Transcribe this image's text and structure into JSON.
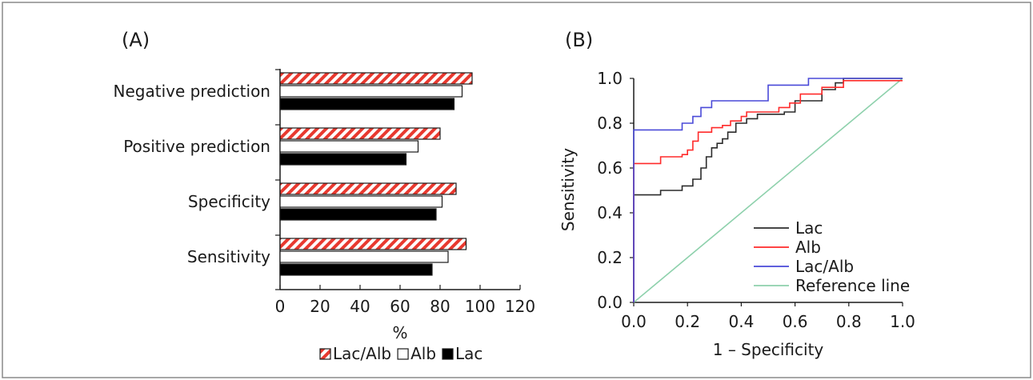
{
  "chart_data": [
    {
      "panel_label": "(A)",
      "type": "bar",
      "orientation": "horizontal",
      "categories": [
        "Negative prediction",
        "Positive prediction",
        "Specificity",
        "Sensitivity"
      ],
      "series": [
        {
          "name": "Lac/Alb",
          "values": [
            96,
            80,
            88,
            93
          ],
          "fill": "hatched-red",
          "color": "#e8392f"
        },
        {
          "name": "Alb",
          "values": [
            91,
            69,
            81,
            84
          ],
          "fill": "white",
          "color": "#ffffff"
        },
        {
          "name": "Lac",
          "values": [
            87,
            63,
            78,
            76
          ],
          "fill": "black",
          "color": "#000000"
        }
      ],
      "xlabel": "%",
      "ylabel": "",
      "xlim": [
        0,
        120
      ],
      "xticks": [
        "0",
        "20",
        "40",
        "60",
        "80",
        "100",
        "120"
      ],
      "legend_position": "bottom",
      "grid": false
    },
    {
      "panel_label": "(B)",
      "type": "line",
      "xlabel": "1 – Specificity",
      "ylabel": "Sensitivity",
      "xlim": [
        0,
        1
      ],
      "ylim": [
        0,
        1
      ],
      "xticks": [
        "0.0",
        "0.2",
        "0.4",
        "0.6",
        "0.8",
        "1.0"
      ],
      "yticks": [
        "0.0",
        "0.2",
        "0.4",
        "0.6",
        "0.8",
        "1.0"
      ],
      "legend_position": "bottom-right",
      "grid": false,
      "series": [
        {
          "name": "Lac",
          "color": "#2b2b2b",
          "points": [
            [
              0,
              0
            ],
            [
              0,
              0.48
            ],
            [
              0.1,
              0.48
            ],
            [
              0.1,
              0.5
            ],
            [
              0.18,
              0.5
            ],
            [
              0.18,
              0.52
            ],
            [
              0.22,
              0.52
            ],
            [
              0.22,
              0.55
            ],
            [
              0.25,
              0.55
            ],
            [
              0.25,
              0.6
            ],
            [
              0.27,
              0.6
            ],
            [
              0.27,
              0.65
            ],
            [
              0.29,
              0.65
            ],
            [
              0.29,
              0.69
            ],
            [
              0.31,
              0.69
            ],
            [
              0.31,
              0.71
            ],
            [
              0.33,
              0.71
            ],
            [
              0.33,
              0.73
            ],
            [
              0.35,
              0.73
            ],
            [
              0.35,
              0.76
            ],
            [
              0.38,
              0.76
            ],
            [
              0.38,
              0.8
            ],
            [
              0.42,
              0.8
            ],
            [
              0.42,
              0.82
            ],
            [
              0.46,
              0.82
            ],
            [
              0.46,
              0.84
            ],
            [
              0.56,
              0.84
            ],
            [
              0.56,
              0.85
            ],
            [
              0.6,
              0.85
            ],
            [
              0.6,
              0.9
            ],
            [
              0.7,
              0.9
            ],
            [
              0.7,
              0.95
            ],
            [
              0.75,
              0.95
            ],
            [
              0.75,
              0.98
            ],
            [
              0.78,
              0.98
            ],
            [
              0.78,
              1.0
            ],
            [
              1.0,
              1.0
            ]
          ]
        },
        {
          "name": "Alb",
          "color": "#ff2a2a",
          "points": [
            [
              0,
              0
            ],
            [
              0,
              0.62
            ],
            [
              0.1,
              0.62
            ],
            [
              0.1,
              0.65
            ],
            [
              0.18,
              0.65
            ],
            [
              0.18,
              0.66
            ],
            [
              0.2,
              0.66
            ],
            [
              0.2,
              0.68
            ],
            [
              0.22,
              0.68
            ],
            [
              0.22,
              0.72
            ],
            [
              0.24,
              0.72
            ],
            [
              0.24,
              0.76
            ],
            [
              0.29,
              0.76
            ],
            [
              0.29,
              0.78
            ],
            [
              0.33,
              0.78
            ],
            [
              0.33,
              0.79
            ],
            [
              0.36,
              0.79
            ],
            [
              0.36,
              0.81
            ],
            [
              0.4,
              0.81
            ],
            [
              0.4,
              0.83
            ],
            [
              0.42,
              0.83
            ],
            [
              0.42,
              0.85
            ],
            [
              0.54,
              0.85
            ],
            [
              0.54,
              0.87
            ],
            [
              0.58,
              0.87
            ],
            [
              0.58,
              0.89
            ],
            [
              0.62,
              0.89
            ],
            [
              0.62,
              0.93
            ],
            [
              0.7,
              0.93
            ],
            [
              0.7,
              0.96
            ],
            [
              0.78,
              0.96
            ],
            [
              0.78,
              0.99
            ],
            [
              1.0,
              0.99
            ]
          ]
        },
        {
          "name": "Lac/Alb",
          "color": "#4a4ad8",
          "points": [
            [
              0,
              0
            ],
            [
              0,
              0.77
            ],
            [
              0.18,
              0.77
            ],
            [
              0.18,
              0.8
            ],
            [
              0.22,
              0.8
            ],
            [
              0.22,
              0.83
            ],
            [
              0.25,
              0.83
            ],
            [
              0.25,
              0.87
            ],
            [
              0.29,
              0.87
            ],
            [
              0.29,
              0.9
            ],
            [
              0.5,
              0.9
            ],
            [
              0.5,
              0.97
            ],
            [
              0.65,
              0.97
            ],
            [
              0.65,
              1.0
            ],
            [
              1.0,
              1.0
            ]
          ]
        },
        {
          "name": "Reference line",
          "color": "#8ed1ac",
          "points": [
            [
              0,
              0
            ],
            [
              1,
              1
            ]
          ]
        }
      ]
    }
  ],
  "colors": {
    "frame": "#8a8a8a",
    "axis": "#1a1a1a"
  }
}
